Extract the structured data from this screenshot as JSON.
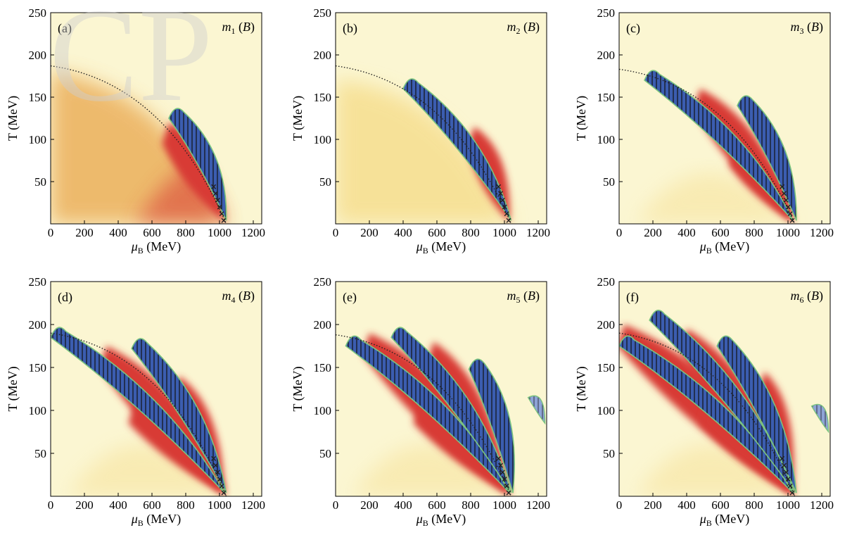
{
  "figure": {
    "watermark": "CP"
  },
  "colors": {
    "background_cream": "#fbf6d2",
    "warm_yellow": "#f4d77a",
    "orange": "#e9a64b",
    "red": "#d83b34",
    "blue": "#3b5db0",
    "pale_blue": "#e3e8f4",
    "hatch": "#111111",
    "outline": "#7bc47f",
    "dotted_line": "#222222"
  },
  "chart_data": [
    {
      "type": "heatmap",
      "panel_label": "(a)",
      "title": "m1 (B)",
      "title_symbol": "m",
      "title_subscript": "1",
      "title_suffix": "(B)",
      "xlabel": "μB (MeV)",
      "xlabel_symbol": "μ",
      "xlabel_subscript": "B",
      "xlabel_suffix": "(MeV)",
      "ylabel": "T (MeV)",
      "xlim": [
        0,
        1250
      ],
      "ylim": [
        0,
        250
      ],
      "xticks": [
        "0",
        "200",
        "400",
        "600",
        "800",
        "1000",
        "1200"
      ],
      "yticks": [
        "50",
        "100",
        "150",
        "200",
        "250"
      ],
      "background": "orange",
      "phase_boundary": {
        "from_T": 187,
        "to_muB": 1040
      },
      "red_bands": [
        {
          "mu_top": 700,
          "T_top": 120,
          "mu_bottom": 1030
        }
      ],
      "blue_regions": [
        {
          "mu_left": 700,
          "T_top": 140,
          "mu_bottom": 1040
        }
      ],
      "extra_regions": []
    },
    {
      "type": "heatmap",
      "panel_label": "(b)",
      "title": "m2 (B)",
      "title_symbol": "m",
      "title_subscript": "2",
      "title_suffix": "(B)",
      "xlabel": "μB (MeV)",
      "xlabel_symbol": "μ",
      "xlabel_subscript": "B",
      "xlabel_suffix": "(MeV)",
      "ylabel": "T (MeV)",
      "xlim": [
        0,
        1250
      ],
      "ylim": [
        0,
        250
      ],
      "xticks": [
        "0",
        "200",
        "400",
        "600",
        "800",
        "1000",
        "1200"
      ],
      "yticks": [
        "50",
        "100",
        "150",
        "200",
        "250"
      ],
      "background": "warm",
      "phase_boundary": {
        "from_T": 187,
        "to_muB": 1040
      },
      "red_bands": [
        {
          "mu_top": 820,
          "T_top": 115,
          "mu_bottom": 1030
        }
      ],
      "blue_regions": [
        {
          "mu_left": 400,
          "T_top": 175,
          "mu_bottom": 1040
        }
      ],
      "extra_regions": []
    },
    {
      "type": "heatmap",
      "panel_label": "(c)",
      "title": "m3 (B)",
      "title_symbol": "m",
      "title_subscript": "3",
      "title_suffix": "(B)",
      "xlabel": "μB (MeV)",
      "xlabel_symbol": "μ",
      "xlabel_subscript": "B",
      "xlabel_suffix": "(MeV)",
      "ylabel": "T (MeV)",
      "xlim": [
        0,
        1250
      ],
      "ylim": [
        0,
        250
      ],
      "xticks": [
        "0",
        "200",
        "400",
        "600",
        "800",
        "1000",
        "1200"
      ],
      "yticks": [
        "50",
        "100",
        "150",
        "200",
        "250"
      ],
      "background": "pale",
      "phase_boundary": {
        "from_T": 183,
        "to_muB": 1040
      },
      "red_bands": [
        {
          "mu_top": 480,
          "T_top": 160,
          "mu_bottom": 1030
        },
        {
          "mu_top": 690,
          "T_top": 95,
          "mu_bottom": 1030
        }
      ],
      "blue_regions": [
        {
          "mu_left": 150,
          "T_top": 185,
          "mu_bottom": 1030
        },
        {
          "mu_left": 700,
          "T_top": 155,
          "mu_bottom": 1050
        }
      ],
      "extra_regions": []
    },
    {
      "type": "heatmap",
      "panel_label": "(d)",
      "title": "m4 (B)",
      "title_symbol": "m",
      "title_subscript": "4",
      "title_suffix": "(B)",
      "xlabel": "μB (MeV)",
      "xlabel_symbol": "μ",
      "xlabel_subscript": "B",
      "xlabel_suffix": "(MeV)",
      "ylabel": "T (MeV)",
      "xlim": [
        0,
        1250
      ],
      "ylim": [
        0,
        250
      ],
      "xticks": [
        "0",
        "200",
        "400",
        "600",
        "800",
        "1000",
        "1200"
      ],
      "yticks": [
        "50",
        "100",
        "150",
        "200",
        "250"
      ],
      "background": "pale",
      "phase_boundary": {
        "from_T": 190,
        "to_muB": 1040
      },
      "red_bands": [
        {
          "mu_top": 330,
          "T_top": 175,
          "mu_bottom": 1030
        },
        {
          "mu_top": 760,
          "T_top": 140,
          "mu_bottom": 1030
        },
        {
          "mu_top": 500,
          "T_top": 110,
          "mu_bottom": 1030
        }
      ],
      "blue_regions": [
        {
          "mu_left": 0,
          "T_top": 200,
          "mu_bottom": 1030
        },
        {
          "mu_left": 480,
          "T_top": 187,
          "mu_bottom": 1040
        }
      ],
      "extra_regions": []
    },
    {
      "type": "heatmap",
      "panel_label": "(e)",
      "title": "m5 (B)",
      "title_symbol": "m",
      "title_subscript": "5",
      "title_suffix": "(B)",
      "xlabel": "μB (MeV)",
      "xlabel_symbol": "μ",
      "xlabel_subscript": "B",
      "xlabel_suffix": "(MeV)",
      "ylabel": "T (MeV)",
      "xlim": [
        0,
        1250
      ],
      "ylim": [
        0,
        250
      ],
      "xticks": [
        "0",
        "200",
        "400",
        "600",
        "800",
        "1000",
        "1200"
      ],
      "yticks": [
        "50",
        "100",
        "150",
        "200",
        "250"
      ],
      "background": "pale",
      "phase_boundary": {
        "from_T": 188,
        "to_muB": 1040
      },
      "red_bands": [
        {
          "mu_top": 200,
          "T_top": 190,
          "mu_bottom": 1030
        },
        {
          "mu_top": 580,
          "T_top": 180,
          "mu_bottom": 1030
        },
        {
          "mu_top": 500,
          "T_top": 110,
          "mu_bottom": 1030
        }
      ],
      "blue_regions": [
        {
          "mu_left": 60,
          "T_top": 190,
          "mu_bottom": 1030
        },
        {
          "mu_left": 330,
          "T_top": 200,
          "mu_bottom": 1040
        },
        {
          "mu_left": 790,
          "T_top": 163,
          "mu_bottom": 1050
        }
      ],
      "extra_regions": [
        {
          "mu": 1180,
          "T": 105
        }
      ]
    },
    {
      "type": "heatmap",
      "panel_label": "(f)",
      "title": "m6 (B)",
      "title_symbol": "m",
      "title_subscript": "6",
      "title_suffix": "(B)",
      "xlabel": "μB (MeV)",
      "xlabel_symbol": "μ",
      "xlabel_subscript": "B",
      "xlabel_suffix": "(MeV)",
      "ylabel": "T (MeV)",
      "xlim": [
        0,
        1250
      ],
      "ylim": [
        0,
        250
      ],
      "xticks": [
        "0",
        "200",
        "400",
        "600",
        "800",
        "1000",
        "1200"
      ],
      "yticks": [
        "50",
        "100",
        "150",
        "200",
        "250"
      ],
      "background": "pale",
      "phase_boundary": {
        "from_T": 190,
        "to_muB": 1040
      },
      "red_bands": [
        {
          "mu_top": 30,
          "T_top": 200,
          "mu_bottom": 1030
        },
        {
          "mu_top": 400,
          "T_top": 195,
          "mu_bottom": 1030
        },
        {
          "mu_top": 860,
          "T_top": 145,
          "mu_bottom": 1030
        },
        {
          "mu_top": 520,
          "T_top": 110,
          "mu_bottom": 1030
        }
      ],
      "blue_regions": [
        {
          "mu_left": 0,
          "T_top": 190,
          "mu_bottom": 1030
        },
        {
          "mu_left": 180,
          "T_top": 220,
          "mu_bottom": 1040
        },
        {
          "mu_left": 580,
          "T_top": 190,
          "mu_bottom": 1050
        }
      ],
      "extra_regions": [
        {
          "mu": 1180,
          "T": 95
        }
      ]
    }
  ]
}
